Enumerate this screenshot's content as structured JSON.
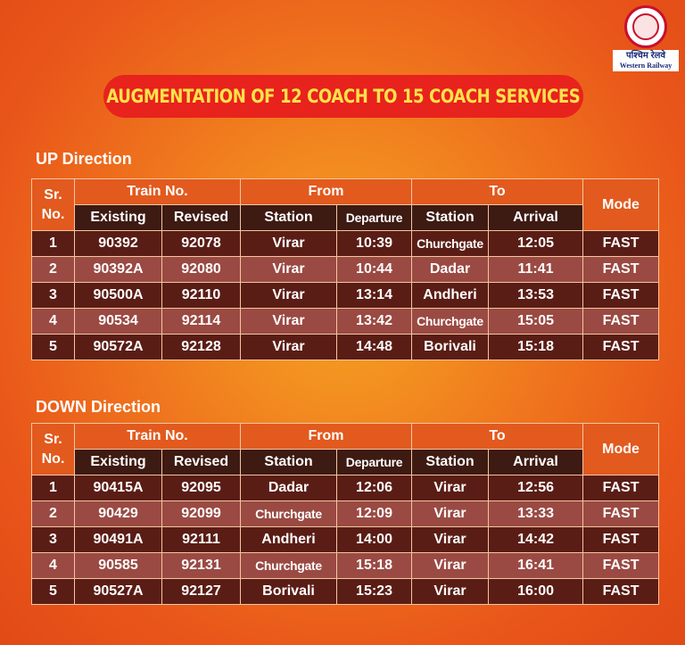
{
  "logo": {
    "hindi": "पश्चिम रेलवे",
    "english": "Western Railway"
  },
  "banner": "AUGMENTATION OF 12 COACH TO 15 COACH SERVICES",
  "headers": {
    "sr": "Sr.",
    "no": "No.",
    "train_no": "Train No.",
    "from": "From",
    "to": "To",
    "mode": "Mode",
    "existing": "Existing",
    "revised": "Revised",
    "station": "Station",
    "departure": "Departure",
    "arrival": "Arrival"
  },
  "up": {
    "title": "UP Direction",
    "rows": [
      {
        "sr": "1",
        "existing": "90392",
        "revised": "92078",
        "from": "Virar",
        "departure": "10:39",
        "to": "Churchgate",
        "arrival": "12:05",
        "mode": "FAST"
      },
      {
        "sr": "2",
        "existing": "90392A",
        "revised": "92080",
        "from": "Virar",
        "departure": "10:44",
        "to": "Dadar",
        "arrival": "11:41",
        "mode": "FAST"
      },
      {
        "sr": "3",
        "existing": "90500A",
        "revised": "92110",
        "from": "Virar",
        "departure": "13:14",
        "to": "Andheri",
        "arrival": "13:53",
        "mode": "FAST"
      },
      {
        "sr": "4",
        "existing": "90534",
        "revised": "92114",
        "from": "Virar",
        "departure": "13:42",
        "to": "Churchgate",
        "arrival": "15:05",
        "mode": "FAST"
      },
      {
        "sr": "5",
        "existing": "90572A",
        "revised": "92128",
        "from": "Virar",
        "departure": "14:48",
        "to": "Borivali",
        "arrival": "15:18",
        "mode": "FAST"
      }
    ]
  },
  "down": {
    "title": "DOWN Direction",
    "rows": [
      {
        "sr": "1",
        "existing": "90415A",
        "revised": "92095",
        "from": "Dadar",
        "departure": "12:06",
        "to": "Virar",
        "arrival": "12:56",
        "mode": "FAST"
      },
      {
        "sr": "2",
        "existing": "90429",
        "revised": "92099",
        "from": "Churchgate",
        "departure": "12:09",
        "to": "Virar",
        "arrival": "13:33",
        "mode": "FAST"
      },
      {
        "sr": "3",
        "existing": "90491A",
        "revised": "92111",
        "from": "Andheri",
        "departure": "14:00",
        "to": "Virar",
        "arrival": "14:42",
        "mode": "FAST"
      },
      {
        "sr": "4",
        "existing": "90585",
        "revised": "92131",
        "from": "Churchgate",
        "departure": "15:18",
        "to": "Virar",
        "arrival": "16:41",
        "mode": "FAST"
      },
      {
        "sr": "5",
        "existing": "90527A",
        "revised": "92127",
        "from": "Borivali",
        "departure": "15:23",
        "to": "Virar",
        "arrival": "16:00",
        "mode": "FAST"
      }
    ]
  }
}
